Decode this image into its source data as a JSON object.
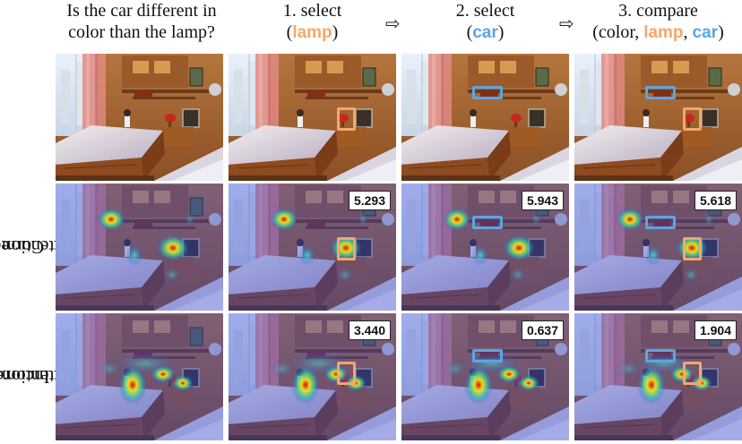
{
  "headers": {
    "question": [
      "Is the car different in",
      "color than the lamp?"
    ],
    "step1": {
      "line1": "1. select",
      "open": "(",
      "obj": "lamp",
      "close": ")"
    },
    "step2": {
      "line1": "2. select",
      "open": "(",
      "obj": "car",
      "close": ")"
    },
    "step3": {
      "line1": "3. compare",
      "open": "(color, ",
      "obj1": "lamp",
      "sep": ", ",
      "obj2": "car",
      "close": ")"
    },
    "arrow": "⇨"
  },
  "row_labels": {
    "correct": [
      "Correct",
      "Attention"
    ],
    "incorrect": [
      "Incorrect",
      "Attention"
    ]
  },
  "scores": {
    "correct": [
      "5.293",
      "5.943",
      "5.618"
    ],
    "incorrect": [
      "3.440",
      "0.637",
      "1.904"
    ]
  },
  "colors": {
    "lamp": "#f4a76a",
    "car": "#5aa5e6"
  }
}
